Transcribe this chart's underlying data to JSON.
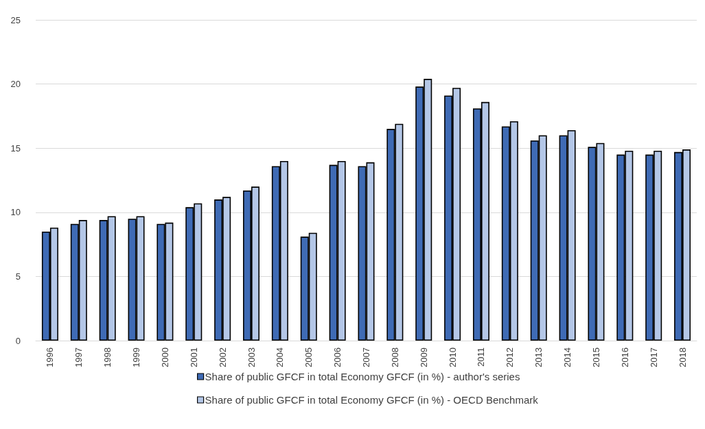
{
  "chart_data": {
    "type": "bar",
    "categories": [
      "1996",
      "1997",
      "1998",
      "1999",
      "2000",
      "2001",
      "2002",
      "2003",
      "2004",
      "2005",
      "2006",
      "2007",
      "2008",
      "2009",
      "2010",
      "2011",
      "2012",
      "2013",
      "2014",
      "2015",
      "2016",
      "2017",
      "2018"
    ],
    "series": [
      {
        "name": "Share of public GFCF in total Economy GFCF (in %) - author's series",
        "color": "#3f6bb5",
        "values": [
          8.5,
          9.1,
          9.4,
          9.5,
          9.1,
          10.4,
          11.0,
          11.7,
          13.6,
          8.1,
          13.7,
          13.6,
          16.5,
          19.8,
          19.1,
          18.1,
          16.7,
          15.6,
          16.0,
          15.1,
          14.5,
          14.5,
          14.7
        ]
      },
      {
        "name": "Share of public GFCF in total Economy GFCF (in %) - OECD Benchmark",
        "color": "#b4c7e7",
        "values": [
          8.8,
          9.4,
          9.7,
          9.7,
          9.2,
          10.7,
          11.2,
          12.0,
          14.0,
          8.4,
          14.0,
          13.9,
          16.9,
          20.4,
          19.7,
          18.6,
          17.1,
          16.0,
          16.4,
          15.4,
          14.8,
          14.8,
          14.9
        ]
      }
    ],
    "ylim": [
      0,
      25
    ],
    "yticks": [
      0,
      5,
      10,
      15,
      20,
      25
    ],
    "grid": "y",
    "legend": "bottom"
  }
}
